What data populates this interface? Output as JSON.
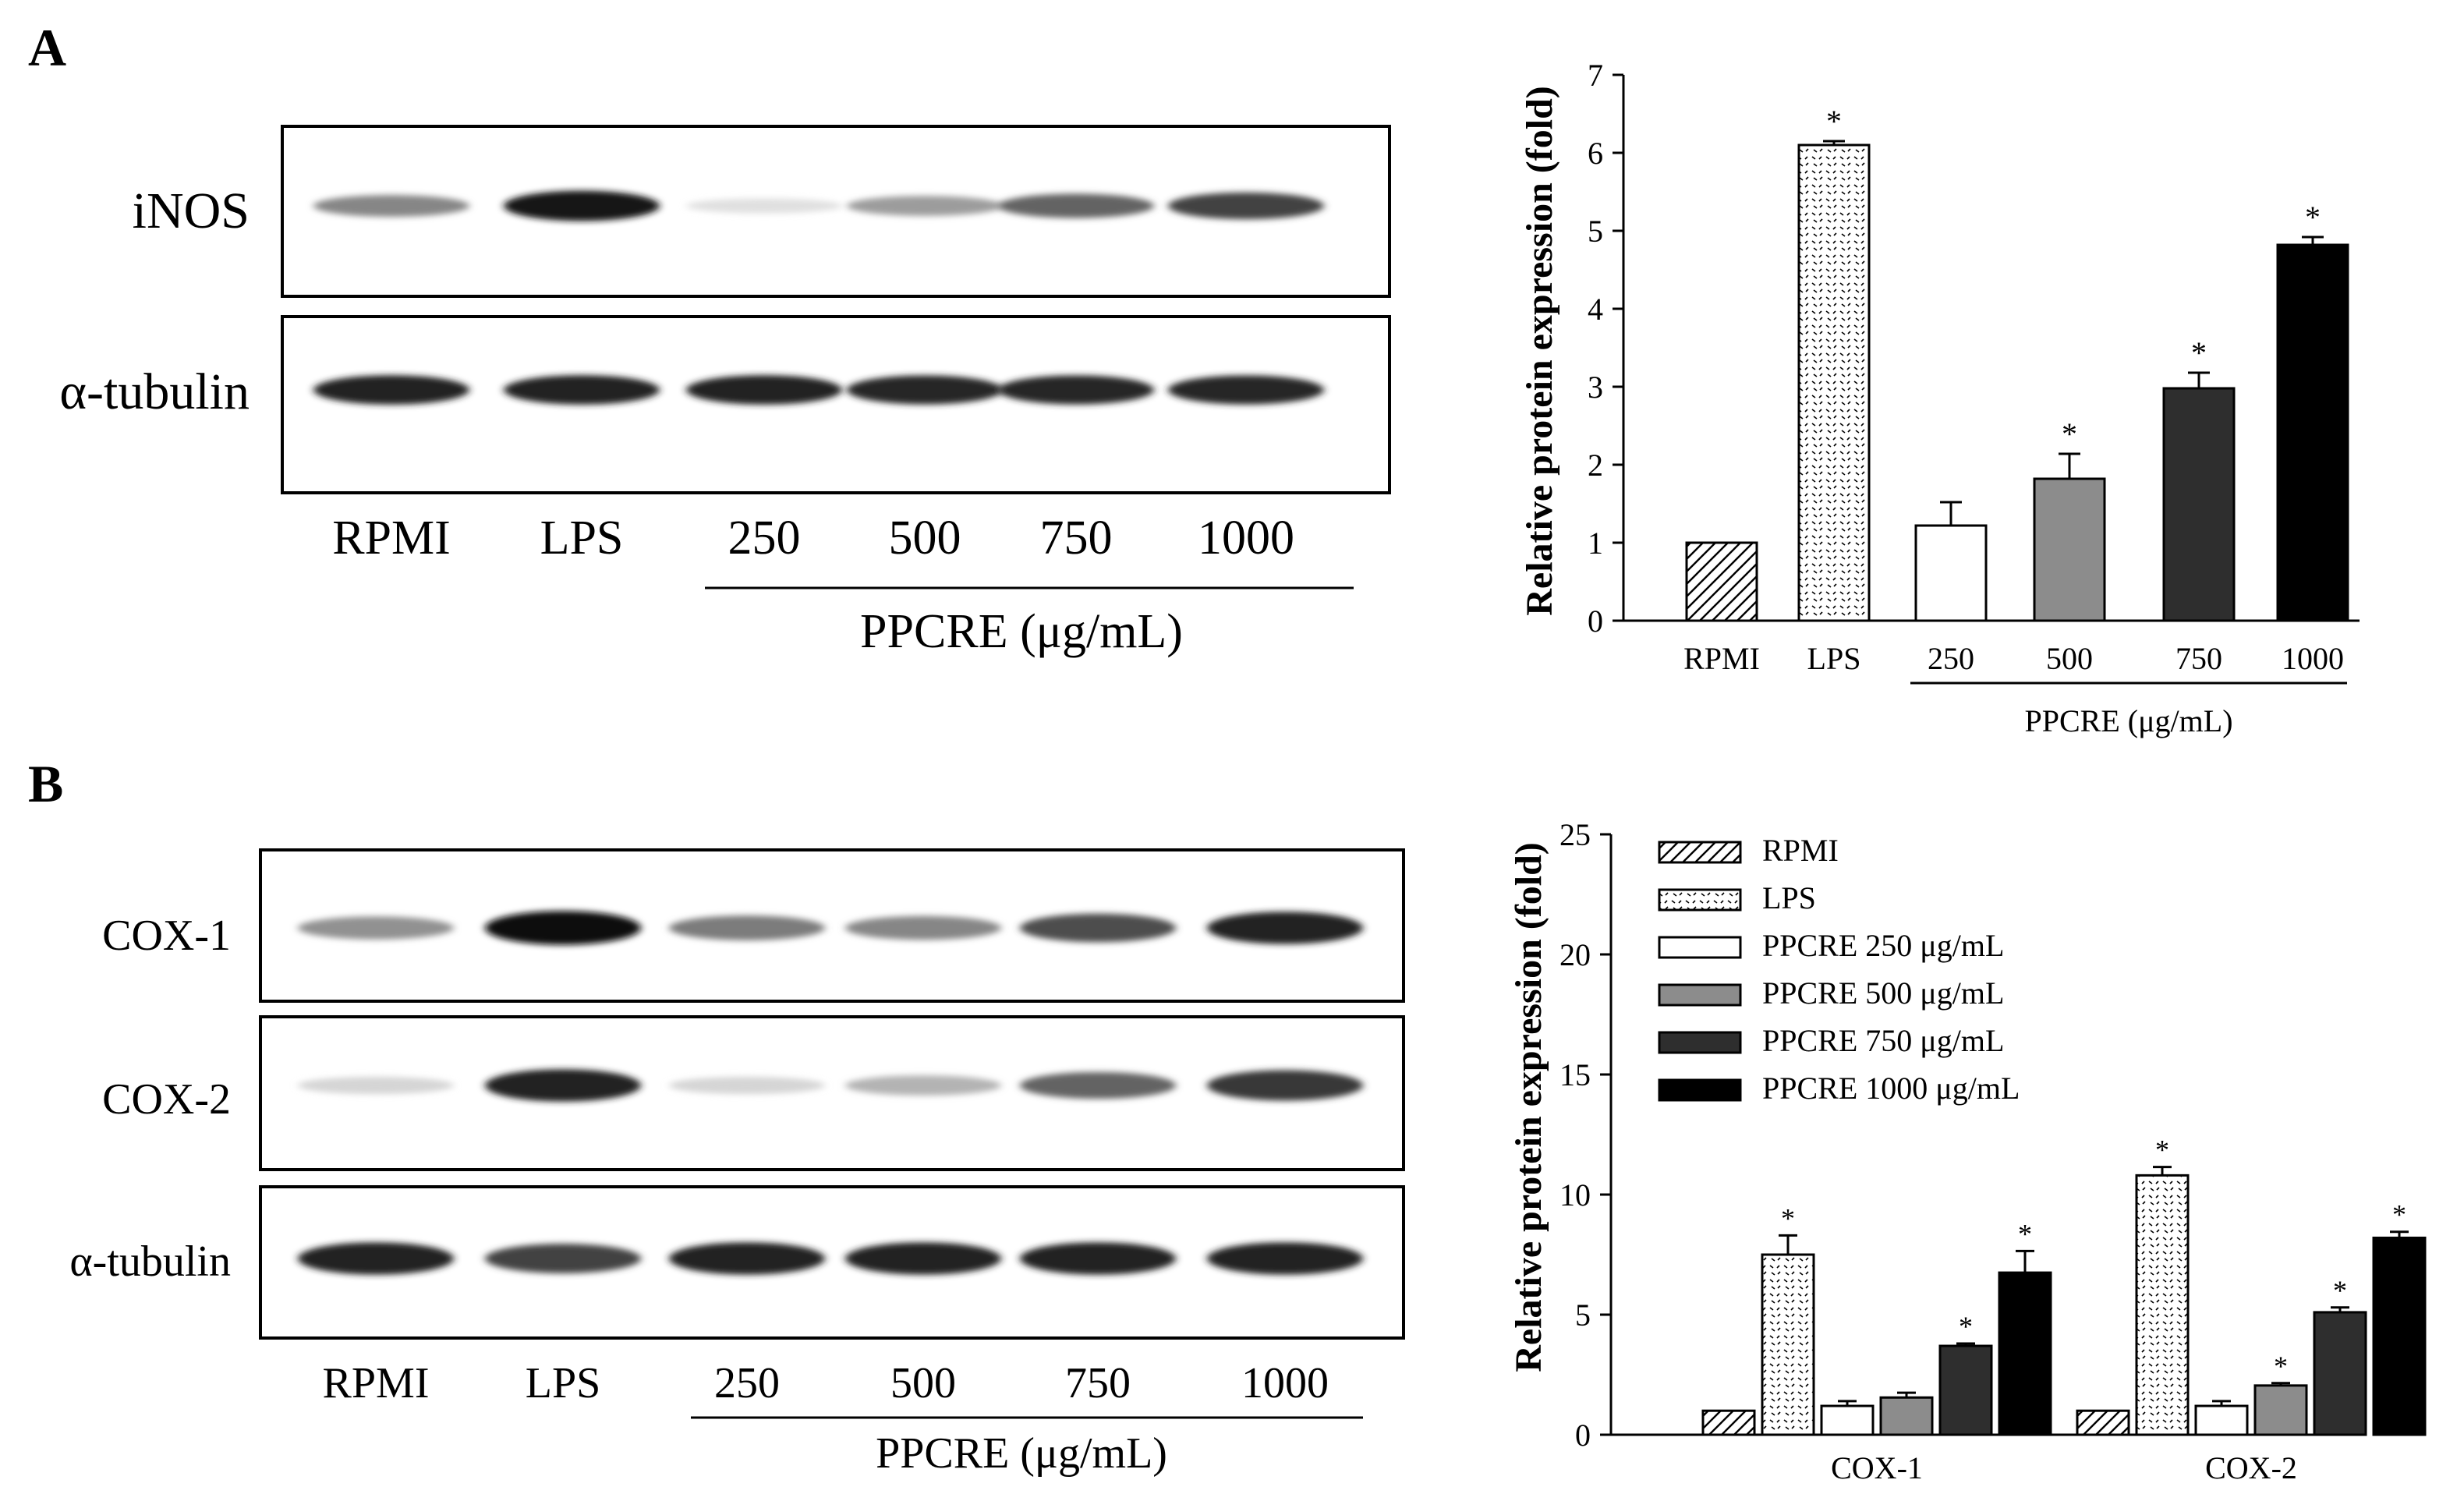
{
  "panels": {
    "a": {
      "letter": "A"
    },
    "b": {
      "letter": "B"
    }
  },
  "blot_a": {
    "rows": [
      {
        "label": "iNOS",
        "intensities": [
          0.45,
          0.95,
          0.05,
          0.35,
          0.6,
          0.75
        ]
      },
      {
        "label": "α-tubulin",
        "intensities": [
          0.9,
          0.9,
          0.9,
          0.88,
          0.88,
          0.88
        ]
      }
    ],
    "lanes": [
      "RPMI",
      "LPS",
      "250",
      "500",
      "750",
      "1000"
    ],
    "group_label": "PPCRE (μg/mL)"
  },
  "blot_b": {
    "rows": [
      {
        "label": "COX-1",
        "intensities": [
          0.4,
          0.98,
          0.5,
          0.45,
          0.7,
          0.9
        ]
      },
      {
        "label": "COX-2",
        "intensities": [
          0.1,
          0.9,
          0.1,
          0.25,
          0.6,
          0.8
        ]
      },
      {
        "label": "α-tubulin",
        "intensities": [
          0.9,
          0.75,
          0.9,
          0.9,
          0.9,
          0.9
        ]
      }
    ],
    "lanes": [
      "RPMI",
      "LPS",
      "250",
      "500",
      "750",
      "1000"
    ],
    "group_label": "PPCRE (μg/mL)"
  },
  "colors": {
    "axis": "#000000",
    "gray": "#8c8c8c",
    "dark": "#2e2e2e",
    "black": "#000000",
    "white": "#ffffff"
  },
  "chart_data": [
    {
      "type": "bar",
      "ylabel": "Relative protein expression (fold)",
      "ylim": [
        0,
        7
      ],
      "yticks": [
        0,
        1,
        2,
        3,
        4,
        5,
        6,
        7
      ],
      "categories": [
        "RPMI",
        "LPS",
        "250",
        "500",
        "750",
        "1000"
      ],
      "group_label": "PPCRE (μg/mL)",
      "values": [
        1.0,
        6.1,
        1.22,
        1.82,
        2.98,
        4.82
      ],
      "errors": [
        0,
        0.05,
        0.3,
        0.32,
        0.2,
        0.1
      ],
      "significant": [
        false,
        true,
        false,
        true,
        true,
        true
      ],
      "significance_mark": "*",
      "fills": [
        "hatch",
        "dots",
        "white",
        "gray",
        "dark",
        "black"
      ]
    },
    {
      "type": "bar",
      "ylabel": "Relative protein expression (fold)",
      "ylim": [
        0,
        25
      ],
      "yticks": [
        0,
        5,
        10,
        15,
        20,
        25
      ],
      "categories": [
        "COX-1",
        "COX-2"
      ],
      "significance_mark": "*",
      "legend_position": "top-left",
      "series": [
        {
          "name": "RPMI",
          "fill": "hatch",
          "values": [
            1.0,
            1.0
          ],
          "errors": [
            0,
            0
          ],
          "significant": [
            false,
            false
          ]
        },
        {
          "name": "LPS",
          "fill": "dots",
          "values": [
            7.5,
            10.8
          ],
          "errors": [
            0.8,
            0.35
          ],
          "significant": [
            true,
            true
          ]
        },
        {
          "name": "PPCRE 250 μg/mL",
          "fill": "white",
          "values": [
            1.2,
            1.2
          ],
          "errors": [
            0.2,
            0.2
          ],
          "significant": [
            false,
            false
          ]
        },
        {
          "name": "PPCRE 500 μg/mL",
          "fill": "gray",
          "values": [
            1.55,
            2.05
          ],
          "errors": [
            0.2,
            0.1
          ],
          "significant": [
            false,
            true
          ]
        },
        {
          "name": "PPCRE 750 μg/mL",
          "fill": "dark",
          "values": [
            3.7,
            5.1
          ],
          "errors": [
            0.1,
            0.2
          ],
          "significant": [
            true,
            true
          ]
        },
        {
          "name": "PPCRE 1000 μg/mL",
          "fill": "black",
          "values": [
            6.75,
            8.2
          ],
          "errors": [
            0.9,
            0.25
          ],
          "significant": [
            true,
            true
          ]
        }
      ]
    }
  ]
}
